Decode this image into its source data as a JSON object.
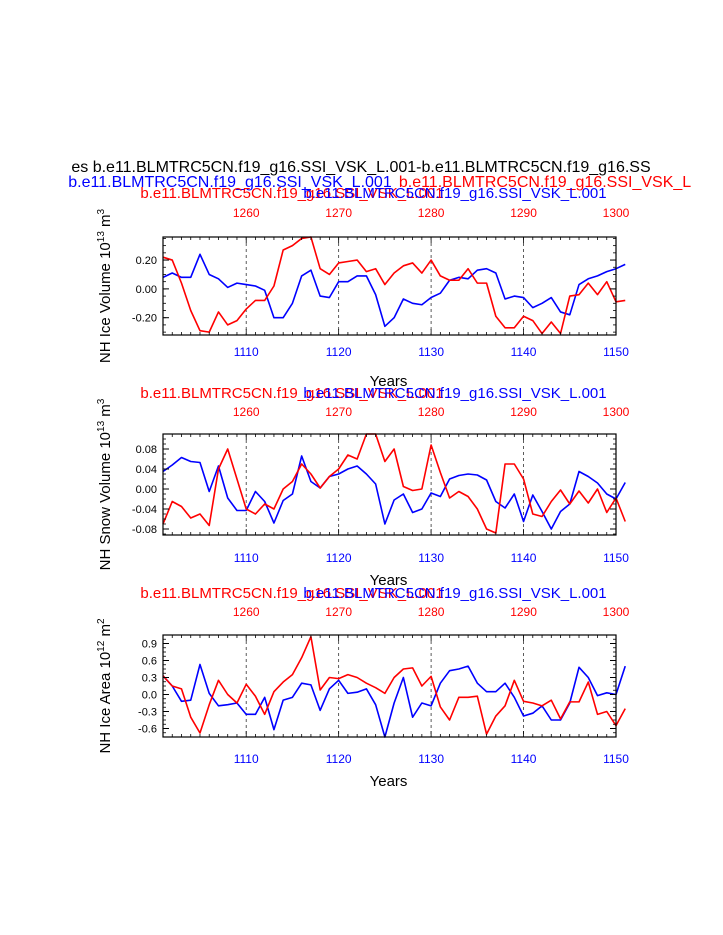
{
  "figure": {
    "main_title": "es b.e11.BLMTRC5CN.f19_g16.SSI_VSK_L.001-b.e11.BLMTRC5CN.f19_g16.SS",
    "legend_blue": "b.e11.BLMTRC5CN.f19_g16.SSI_VSK_L.001",
    "legend_red": "b.e11.BLMTRC5CN.f19_g16.SSI_VSK_L",
    "red_color": "#ff0000",
    "blue_color": "#0000ff"
  },
  "chart_data": [
    {
      "type": "line",
      "title_red": "b.e11.BLMTRC5CN.f19_g16.SSI_VSK_L.001",
      "title_blue": "b.e11.BLMTRC5CN.f19_g16.SSI_VSK_L.001",
      "ylabel": "NH Ice Volume 10",
      "ylabel_exp": "13",
      "ylabel_unit": " m",
      "ylabel_unit_exp": "3",
      "xlabel": "Years",
      "xlim": [
        1101,
        1150
      ],
      "xlim_top": [
        1251,
        1300
      ],
      "ylim": [
        -0.32,
        0.36
      ],
      "yticks": [
        -0.2,
        0.0,
        0.2
      ],
      "ytick_labels": [
        "-0.20",
        "0.00",
        "0.20"
      ],
      "xticks": [
        1110,
        1120,
        1130,
        1140,
        1150
      ],
      "xticks_top": [
        1260,
        1270,
        1280,
        1290,
        1300
      ],
      "series": [
        {
          "name": "b.e11.BLMTRC5CN.f19_g16.SSI_VSK_L.001",
          "axis": "bottom",
          "color": "#0000ff",
          "x_start": 1101,
          "values": [
            0.08,
            0.11,
            0.08,
            0.08,
            0.24,
            0.1,
            0.07,
            0.01,
            0.04,
            0.03,
            0.02,
            -0.01,
            -0.2,
            -0.2,
            -0.1,
            0.09,
            0.13,
            -0.05,
            -0.06,
            0.05,
            0.05,
            0.09,
            0.09,
            -0.04,
            -0.26,
            -0.2,
            -0.07,
            -0.1,
            -0.11,
            -0.06,
            -0.03,
            0.06,
            0.08,
            0.07,
            0.13,
            0.14,
            0.11,
            -0.07,
            -0.05,
            -0.06,
            -0.13,
            -0.1,
            -0.06,
            -0.16,
            -0.18,
            0.03,
            0.07,
            0.09,
            0.12,
            0.14,
            0.17
          ]
        },
        {
          "name": "b.e11.BLMTRC5CN.f19_g16.SSI_VSK_L.001",
          "axis": "top",
          "color": "#ff0000",
          "x_start": 1251,
          "values": [
            0.22,
            0.2,
            0.04,
            -0.15,
            -0.29,
            -0.3,
            -0.16,
            -0.25,
            -0.22,
            -0.14,
            -0.08,
            -0.08,
            0.02,
            0.27,
            0.3,
            0.35,
            0.36,
            0.14,
            0.1,
            0.18,
            0.19,
            0.2,
            0.12,
            0.14,
            0.03,
            0.11,
            0.16,
            0.18,
            0.11,
            0.2,
            0.09,
            0.06,
            0.06,
            0.14,
            0.04,
            0.04,
            -0.19,
            -0.27,
            -0.27,
            -0.19,
            -0.22,
            -0.31,
            -0.23,
            -0.31,
            -0.05,
            -0.04,
            0.04,
            -0.04,
            0.05,
            -0.09,
            -0.08
          ]
        }
      ]
    },
    {
      "type": "line",
      "title_red": "b.e11.BLMTRC5CN.f19_g16.SSI_VSK_L.001",
      "title_blue": "b.e11.BLMTRC5CN.f19_g16.SSI_VSK_L.001",
      "ylabel": "NH Snow Volume 10",
      "ylabel_exp": "13",
      "ylabel_unit": " m",
      "ylabel_unit_exp": "3",
      "xlabel": "Years",
      "xlim": [
        1101,
        1150
      ],
      "xlim_top": [
        1251,
        1300
      ],
      "ylim": [
        -0.092,
        0.11
      ],
      "yticks": [
        -0.08,
        -0.04,
        0.0,
        0.04,
        0.08
      ],
      "ytick_labels": [
        "-0.08",
        "-0.04",
        "0.00",
        "0.04",
        "0.08"
      ],
      "xticks": [
        1110,
        1120,
        1130,
        1140,
        1150
      ],
      "xticks_top": [
        1260,
        1270,
        1280,
        1290,
        1300
      ],
      "series": [
        {
          "name": "b.e11.BLMTRC5CN.f19_g16.SSI_VSK_L.001",
          "axis": "bottom",
          "color": "#0000ff",
          "x_start": 1101,
          "values": [
            0.035,
            0.048,
            0.063,
            0.055,
            0.053,
            -0.005,
            0.046,
            -0.018,
            -0.043,
            -0.043,
            -0.005,
            -0.025,
            -0.068,
            -0.023,
            -0.01,
            0.066,
            0.015,
            0.002,
            0.025,
            0.03,
            0.04,
            0.046,
            0.03,
            0.01,
            -0.07,
            -0.022,
            -0.01,
            -0.047,
            -0.04,
            -0.008,
            -0.015,
            0.02,
            0.027,
            0.03,
            0.028,
            0.018,
            -0.025,
            -0.038,
            -0.01,
            -0.065,
            -0.012,
            -0.045,
            -0.08,
            -0.045,
            -0.03,
            0.035,
            0.025,
            0.012,
            -0.01,
            -0.02,
            0.013
          ]
        },
        {
          "name": "b.e11.BLMTRC5CN.f19_g16.SSI_VSK_L.001",
          "axis": "top",
          "color": "#ff0000",
          "x_start": 1251,
          "values": [
            -0.07,
            -0.025,
            -0.035,
            -0.058,
            -0.05,
            -0.073,
            0.04,
            0.08,
            0.02,
            -0.04,
            -0.05,
            -0.03,
            -0.04,
            0.0,
            0.015,
            0.05,
            0.03,
            0.002,
            0.025,
            0.04,
            0.068,
            0.06,
            0.11,
            0.11,
            0.055,
            0.08,
            0.005,
            -0.003,
            0.0,
            0.088,
            0.033,
            -0.018,
            -0.005,
            -0.015,
            -0.04,
            -0.08,
            -0.088,
            0.05,
            0.05,
            0.02,
            -0.05,
            -0.055,
            -0.025,
            -0.002,
            -0.03,
            -0.004,
            -0.028,
            0.0,
            -0.047,
            -0.018,
            -0.065
          ]
        }
      ]
    },
    {
      "type": "line",
      "title_red": "b.e11.BLMTRC5CN.f19_g16.SSI_VSK_L.001",
      "title_blue": "b.e11.BLMTRC5CN.f19_g16.SSI_VSK_L.001",
      "ylabel": "NH Ice Area 10",
      "ylabel_exp": "12",
      "ylabel_unit": " m",
      "ylabel_unit_exp": "2",
      "xlabel": "Years",
      "xlim": [
        1101,
        1150
      ],
      "xlim_top": [
        1251,
        1300
      ],
      "ylim": [
        -0.75,
        1.05
      ],
      "yticks": [
        -0.6,
        -0.3,
        0.0,
        0.3,
        0.6,
        0.9
      ],
      "ytick_labels": [
        "-0.6",
        "-0.3",
        "0.0",
        "0.3",
        "0.6",
        "0.9"
      ],
      "xticks": [
        1110,
        1120,
        1130,
        1140,
        1150
      ],
      "xticks_top": [
        1260,
        1270,
        1280,
        1290,
        1300
      ],
      "series": [
        {
          "name": "b.e11.BLMTRC5CN.f19_g16.SSI_VSK_L.001",
          "axis": "bottom",
          "color": "#0000ff",
          "x_start": 1101,
          "values": [
            0.33,
            0.15,
            -0.12,
            -0.1,
            0.53,
            0.02,
            -0.2,
            -0.18,
            -0.15,
            -0.35,
            -0.35,
            -0.05,
            -0.62,
            -0.1,
            -0.05,
            0.2,
            0.17,
            -0.28,
            0.1,
            0.25,
            0.02,
            0.04,
            0.1,
            -0.18,
            -0.75,
            -0.15,
            0.3,
            -0.4,
            -0.15,
            -0.2,
            0.2,
            0.42,
            0.45,
            0.5,
            0.2,
            0.05,
            0.05,
            0.2,
            -0.05,
            -0.38,
            -0.33,
            -0.2,
            -0.45,
            -0.45,
            -0.15,
            0.48,
            0.3,
            -0.02,
            0.03,
            0.0,
            0.5
          ]
        },
        {
          "name": "b.e11.BLMTRC5CN.f19_g16.SSI_VSK_L.001",
          "axis": "top",
          "color": "#ff0000",
          "x_start": 1251,
          "values": [
            0.33,
            0.15,
            0.1,
            -0.4,
            -0.68,
            -0.18,
            0.25,
            0.0,
            -0.15,
            0.18,
            -0.03,
            -0.35,
            0.05,
            0.22,
            0.35,
            0.65,
            1.02,
            0.08,
            0.3,
            0.28,
            0.35,
            0.3,
            0.2,
            0.12,
            0.02,
            0.3,
            0.45,
            0.47,
            0.15,
            0.32,
            -0.22,
            -0.45,
            -0.05,
            -0.05,
            -0.03,
            -0.7,
            -0.38,
            -0.2,
            0.25,
            -0.12,
            -0.15,
            -0.2,
            -0.1,
            -0.43,
            -0.13,
            -0.13,
            0.22,
            -0.35,
            -0.3,
            -0.55,
            -0.25
          ]
        }
      ]
    }
  ]
}
